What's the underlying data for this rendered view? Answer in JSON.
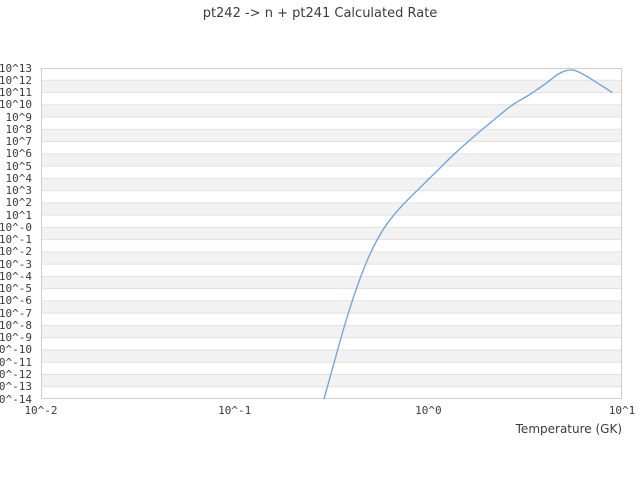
{
  "title": "pt242 -> n + pt241 Calculated Rate",
  "chart_data": {
    "type": "line",
    "title": "pt242 -> n + pt241 Calculated Rate",
    "xlabel": "Temperature (GK)",
    "ylabel": "",
    "x_scale": "log",
    "y_scale": "log",
    "xlim": [
      0.01,
      10
    ],
    "ylim": [
      1e-14,
      10000000000000.0
    ],
    "x_tick_labels": [
      "10^-2",
      "10^-1",
      "10^0",
      "10^1"
    ],
    "y_tick_labels": [
      "10^13",
      "10^12",
      "10^11",
      "10^10",
      "10^9",
      "10^8",
      "10^7",
      "10^6",
      "10^5",
      "10^4",
      "10^3",
      "10^2",
      "10^1",
      "10^-0",
      "10^-1",
      "10^-2",
      "10^-3",
      "10^-4",
      "10^-5",
      "10^-6",
      "10^-7",
      "10^-8",
      "10^-9",
      "10^-10",
      "10^-11",
      "10^-12",
      "10^-13",
      "10^-14"
    ],
    "grid": "horizontal-decade-lines-with-alternating-bands",
    "legend": "none",
    "series": [
      {
        "name": "calculated rate",
        "color": "#74a7dc",
        "T_GK": [
          0.289,
          0.318,
          0.35,
          0.389,
          0.439,
          0.506,
          0.597,
          0.723,
          0.884,
          1.1,
          1.37,
          1.72,
          2.16,
          2.7,
          3.35,
          4.05,
          4.67,
          5.14,
          5.65,
          6.44,
          7.51,
          8.88
        ],
        "log10_rate": [
          -14.0,
          -11.67,
          -9.29,
          -6.84,
          -4.38,
          -2.0,
          0.04,
          1.68,
          3.07,
          4.55,
          6.02,
          7.41,
          8.72,
          9.95,
          10.85,
          11.75,
          12.49,
          12.78,
          12.82,
          12.41,
          11.75,
          11.02
        ]
      }
    ]
  },
  "colors": {
    "background": "#ffffff",
    "band_gray": "#f2f2f2",
    "gridline": "#e2e2e2",
    "border": "#cfcfcf",
    "text": "#3b3b3b",
    "curve": "#74a7dc"
  }
}
